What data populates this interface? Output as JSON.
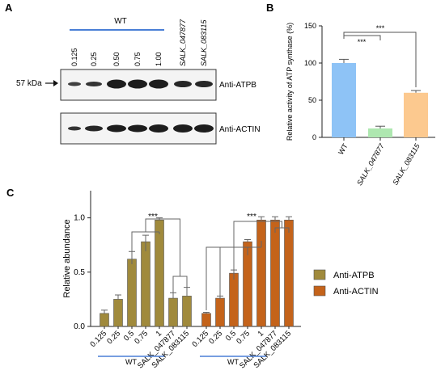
{
  "figure": {
    "panel_a": {
      "letter": "A",
      "wt_label": "WT",
      "lane_labels": [
        "0.125",
        "0.25",
        "0.50",
        "0.75",
        "1.00"
      ],
      "mutant_labels": [
        "SALK_047877",
        "SALK_083115"
      ],
      "marker": "57 kDa",
      "blot_labels": [
        "Anti-ATPB",
        "Anti-ACTIN"
      ]
    },
    "panel_b": {
      "letter": "B"
    },
    "panel_c": {
      "letter": "C"
    }
  },
  "chart_data": [
    {
      "type": "bar",
      "panel": "B",
      "ylabel": "Relative activity of ATP synthase (%)",
      "categories": [
        "WT",
        "SALK_047877",
        "SALK_083115"
      ],
      "values": [
        100,
        12,
        60
      ],
      "errors": [
        5,
        3,
        3
      ],
      "colors": [
        "#8ec3f6",
        "#aee7b0",
        "#fcc98f"
      ],
      "ylim": [
        0,
        150
      ],
      "yticks": [
        "0",
        "50",
        "100",
        "150"
      ],
      "significance": [
        "***",
        "***"
      ]
    },
    {
      "type": "bar",
      "panel": "C",
      "ylabel": "Relative abundance",
      "ylim": [
        0,
        1.25
      ],
      "yticks": [
        "0.0",
        "0.5",
        "1.0"
      ],
      "group_label": "WT",
      "categories": [
        "0.125",
        "0.25",
        "0.5",
        "0.75",
        "1",
        "SALK_047877",
        "SALK_083115"
      ],
      "series": [
        {
          "name": "Anti-ATPB",
          "color": "#a08a3c",
          "values": [
            0.12,
            0.25,
            0.62,
            0.78,
            0.98,
            0.26,
            0.28
          ],
          "errors": [
            0.03,
            0.04,
            0.07,
            0.06,
            0.02,
            0.05,
            0.08
          ]
        },
        {
          "name": "Anti-ACTIN",
          "color": "#c4631a",
          "values": [
            0.12,
            0.26,
            0.49,
            0.78,
            0.98,
            0.98,
            0.98
          ],
          "errors": [
            0.01,
            0.02,
            0.03,
            0.02,
            0.03,
            0.03,
            0.03
          ]
        }
      ],
      "significance": [
        "***",
        "***"
      ]
    }
  ]
}
